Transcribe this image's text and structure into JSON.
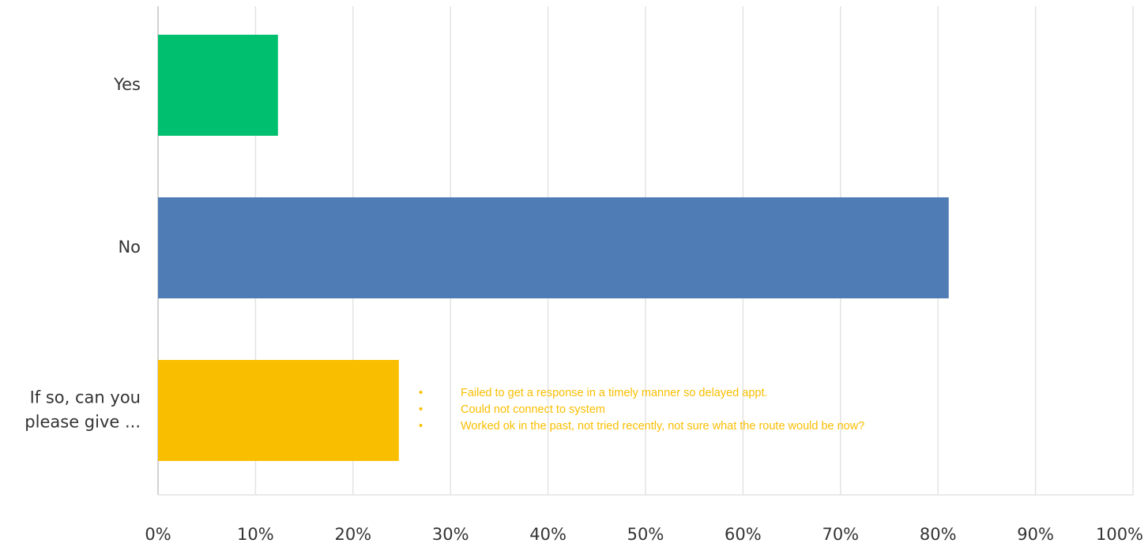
{
  "chart_data": {
    "type": "bar",
    "orientation": "horizontal",
    "categories": [
      "Yes",
      "No",
      "If so, can you please give ..."
    ],
    "category_lines": [
      [
        "Yes"
      ],
      [
        "No"
      ],
      [
        "If so, can you",
        "please give ..."
      ]
    ],
    "values": [
      12.3,
      81.1,
      24.7
    ],
    "colors": [
      "#00bf6f",
      "#507cb6",
      "#f9be00"
    ],
    "xlim": [
      0,
      100
    ],
    "xticks": [
      0,
      10,
      20,
      30,
      40,
      50,
      60,
      70,
      80,
      90,
      100
    ],
    "xtick_labels": [
      "0%",
      "10%",
      "20%",
      "30%",
      "40%",
      "50%",
      "60%",
      "70%",
      "80%",
      "90%",
      "100%"
    ],
    "grid": true,
    "title": "",
    "xlabel": "",
    "ylabel": ""
  },
  "annotation": {
    "bullet": "•",
    "color": "#f9be00",
    "items": [
      "Failed to get a response in a timely manner so delayed appt.",
      "Could not connect to system",
      "Worked ok in the past, not tried recently, not sure what the route would be now?"
    ]
  }
}
